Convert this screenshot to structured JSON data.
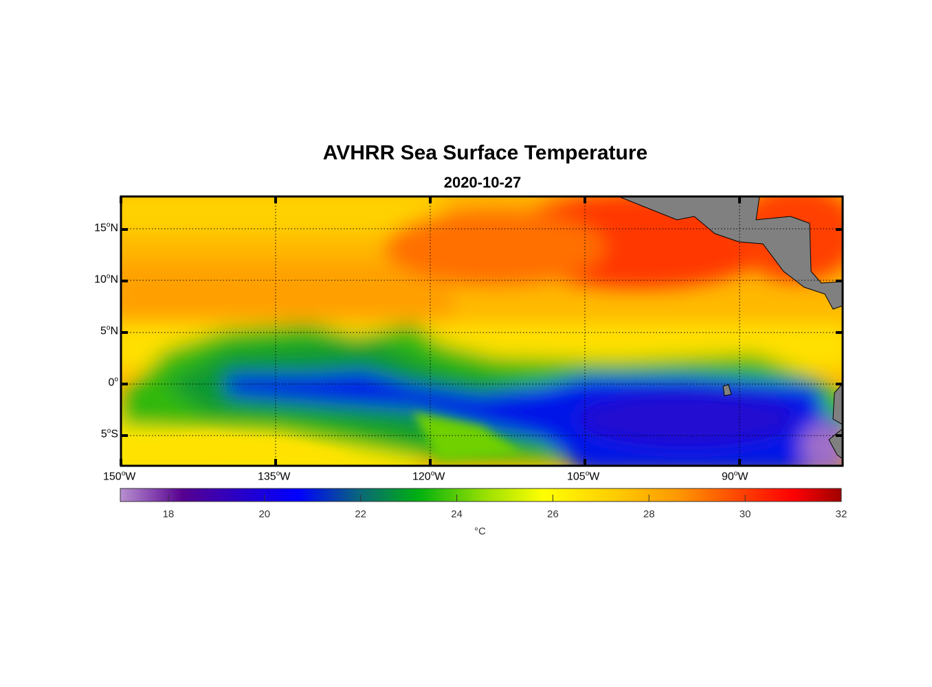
{
  "chart_data": {
    "type": "heatmap",
    "title": "AVHRR Sea Surface Temperature",
    "subtitle": "2020-10-27",
    "variable": "Sea Surface Temperature",
    "x_range_lon": [
      -150,
      -80
    ],
    "y_range_lat": [
      -8,
      18
    ],
    "xticks": [
      {
        "value": -150,
        "deg": "150",
        "hemi": "W"
      },
      {
        "value": -135,
        "deg": "135",
        "hemi": "W"
      },
      {
        "value": -120,
        "deg": "120",
        "hemi": "W"
      },
      {
        "value": -105,
        "deg": "105",
        "hemi": "W"
      },
      {
        "value": -90,
        "deg": "90",
        "hemi": "W"
      }
    ],
    "yticks": [
      {
        "value": 15,
        "deg": "15",
        "hemi": "N"
      },
      {
        "value": 10,
        "deg": "10",
        "hemi": "N"
      },
      {
        "value": 5,
        "deg": "5",
        "hemi": "N"
      },
      {
        "value": 0,
        "deg": "0",
        "hemi": ""
      },
      {
        "value": -5,
        "deg": "5",
        "hemi": "S"
      }
    ],
    "grid": "dotted",
    "colorbar": {
      "clim": [
        17,
        32
      ],
      "ticks": [
        "18",
        "20",
        "22",
        "24",
        "26",
        "28",
        "30",
        "32"
      ],
      "tick_values": [
        18,
        20,
        22,
        24,
        26,
        28,
        30,
        32
      ],
      "label": "°C",
      "placement": "bottom",
      "stops": [
        {
          "v": 17,
          "c": "#b890d0"
        },
        {
          "v": 18.3,
          "c": "#560090"
        },
        {
          "v": 19.5,
          "c": "#2800c8"
        },
        {
          "v": 20.7,
          "c": "#0000ff"
        },
        {
          "v": 22,
          "c": "#0a6878"
        },
        {
          "v": 23.2,
          "c": "#00b010"
        },
        {
          "v": 24.6,
          "c": "#9ae000"
        },
        {
          "v": 25.8,
          "c": "#ffff00"
        },
        {
          "v": 27.3,
          "c": "#ffcc00"
        },
        {
          "v": 28.6,
          "c": "#ff9800"
        },
        {
          "v": 30.2,
          "c": "#ff3000"
        },
        {
          "v": 31,
          "c": "#ff0000"
        },
        {
          "v": 32,
          "c": "#a00000"
        }
      ]
    },
    "features": {
      "warm_pool_north_east_c": 30,
      "equatorial_cold_tongue_c": 20.5,
      "peru_coast_min_c": 18,
      "land_color": "#808080"
    }
  }
}
